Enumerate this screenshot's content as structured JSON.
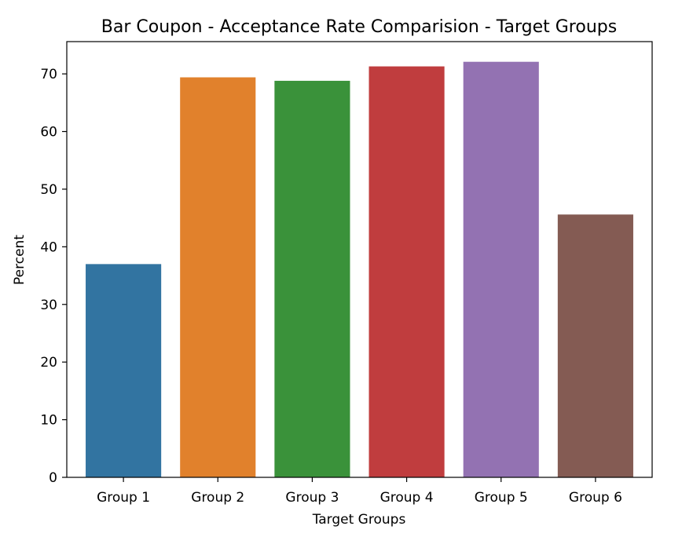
{
  "chart_data": {
    "type": "bar",
    "title": "Bar Coupon - Acceptance Rate Comparision - Target Groups",
    "xlabel": "Target Groups",
    "ylabel": "Percent",
    "categories": [
      "Group 1",
      "Group 2",
      "Group 3",
      "Group 4",
      "Group 5",
      "Group 6"
    ],
    "values": [
      37.0,
      69.4,
      68.8,
      71.3,
      72.1,
      45.6
    ],
    "colors": [
      "#3274a1",
      "#e1812c",
      "#3a923a",
      "#c03d3e",
      "#9372b2",
      "#845b53"
    ],
    "ylim": [
      0,
      75.6
    ],
    "yticks": [
      0,
      10,
      20,
      30,
      40,
      50,
      60,
      70
    ],
    "grid": false,
    "legend": "none"
  }
}
